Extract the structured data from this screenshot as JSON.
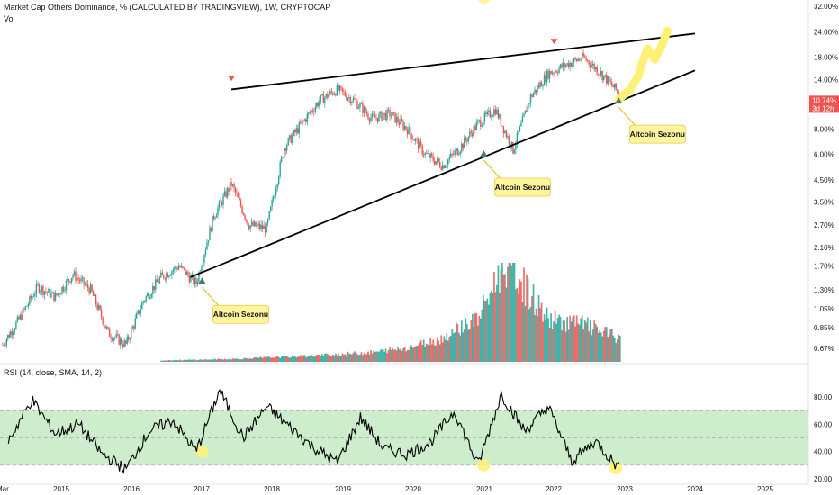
{
  "header": {
    "title": "Market Cap Others Dominance, % (CALCULATED BY TRADINGVIEW), 1W, CRYPTOCAP",
    "volume_label": "Vol"
  },
  "rsi": {
    "label": "RSI (14, close, SMA, 14, 2)"
  },
  "price_tag": {
    "value": "10.74%",
    "countdown": "3d 12h"
  },
  "colors": {
    "up": "#26a69a",
    "down": "#ef5350",
    "vol_up": "#26a69a",
    "vol_down": "#ef5350",
    "rsi_band": "#c8ebc8",
    "annotation": "#fff59d",
    "trendline": "#000000"
  },
  "annotations": [
    {
      "text": "Altcoin Sezonu",
      "date": "2017-01",
      "value": 1.45
    },
    {
      "text": "Altcoin Sezonu",
      "date": "2021-01",
      "value": 6.1
    },
    {
      "text": "Altcoin Sezonu",
      "date": "2022-12",
      "value": 11.1
    }
  ],
  "chart_data": [
    {
      "type": "line",
      "subtype": "candlestick",
      "title": "Market Cap Others Dominance, % (CALCULATED BY TRADINGVIEW), 1W, CRYPTOCAP",
      "y_scale": "log",
      "ylim": [
        0.6,
        33
      ],
      "yticks": [
        "32.00%",
        "24.00%",
        "18.00%",
        "14.00%",
        "10.74%",
        "8.00%",
        "6.00%",
        "4.50%",
        "3.50%",
        "2.70%",
        "2.10%",
        "1.70%",
        "1.30%",
        "1.05%",
        "0.85%",
        "0.67%"
      ],
      "ytick_values": [
        32,
        24,
        18,
        14,
        10.74,
        8,
        6,
        4.5,
        3.5,
        2.7,
        2.1,
        1.7,
        1.3,
        1.05,
        0.85,
        0.67
      ],
      "xticks": [
        "Mar",
        "2015",
        "2016",
        "2017",
        "2018",
        "2019",
        "2020",
        "2021",
        "2022",
        "2023",
        "2024",
        "2025"
      ],
      "series": [
        {
          "name": "Others Dominance",
          "x": [
            "2014-03",
            "2014-06",
            "2014-09",
            "2014-12",
            "2015-03",
            "2015-06",
            "2015-09",
            "2015-12",
            "2016-03",
            "2016-06",
            "2016-09",
            "2016-12",
            "2017-03",
            "2017-06",
            "2017-09",
            "2017-12",
            "2018-03",
            "2018-06",
            "2018-09",
            "2018-12",
            "2019-03",
            "2019-06",
            "2019-09",
            "2019-12",
            "2020-03",
            "2020-06",
            "2020-09",
            "2020-12",
            "2021-03",
            "2021-06",
            "2021-09",
            "2021-12",
            "2022-03",
            "2022-06",
            "2022-09",
            "2022-12"
          ],
          "values": [
            0.7,
            0.95,
            1.35,
            1.2,
            1.55,
            1.3,
            0.8,
            0.7,
            1.15,
            1.5,
            1.7,
            1.4,
            3.0,
            4.3,
            2.7,
            2.6,
            6.5,
            8.5,
            11.0,
            12.5,
            11.0,
            9.0,
            9.5,
            8.0,
            6.0,
            5.3,
            6.5,
            8.5,
            10.0,
            6.3,
            11.5,
            15.0,
            16.5,
            18.0,
            15.0,
            12.0
          ]
        }
      ],
      "trendlines": [
        {
          "name": "upper",
          "from": [
            "2017-06",
            12.5
          ],
          "to": [
            "2024-01",
            23.5
          ]
        },
        {
          "name": "lower",
          "from": [
            "2016-11",
            1.5
          ],
          "to": [
            "2024-01",
            15.5
          ]
        }
      ]
    },
    {
      "type": "area",
      "title": "Vol",
      "x": [
        "2016-06",
        "2017-06",
        "2018-06",
        "2019-06",
        "2019-12",
        "2020-06",
        "2020-09",
        "2020-12",
        "2021-03",
        "2021-05",
        "2021-09",
        "2021-12",
        "2022-06",
        "2022-12"
      ],
      "values": [
        0.3,
        0.6,
        1.2,
        2.0,
        3.0,
        5.0,
        7.5,
        9.0,
        17.0,
        21.0,
        14.0,
        9.0,
        8.0,
        5.0
      ]
    },
    {
      "type": "line",
      "title": "RSI (14, close, SMA, 14, 2)",
      "ylim": [
        20,
        90
      ],
      "yticks": [
        "80.00",
        "60.00",
        "40.00",
        "20.00"
      ],
      "ytick_values": [
        80,
        60,
        40,
        20
      ],
      "band": [
        30,
        70
      ],
      "series": [
        {
          "name": "RSI",
          "x": [
            "2014-04",
            "2014-08",
            "2014-12",
            "2015-04",
            "2015-08",
            "2015-12",
            "2016-04",
            "2016-08",
            "2016-12",
            "2017-04",
            "2017-08",
            "2017-12",
            "2018-04",
            "2018-08",
            "2018-12",
            "2019-04",
            "2019-08",
            "2019-12",
            "2020-04",
            "2020-08",
            "2020-12",
            "2021-04",
            "2021-08",
            "2021-12",
            "2022-04",
            "2022-08",
            "2022-12"
          ],
          "values": [
            48,
            78,
            53,
            60,
            38,
            27,
            55,
            63,
            40,
            85,
            50,
            73,
            58,
            43,
            32,
            65,
            42,
            38,
            47,
            70,
            30,
            82,
            55,
            73,
            33,
            48,
            28
          ]
        }
      ]
    }
  ]
}
